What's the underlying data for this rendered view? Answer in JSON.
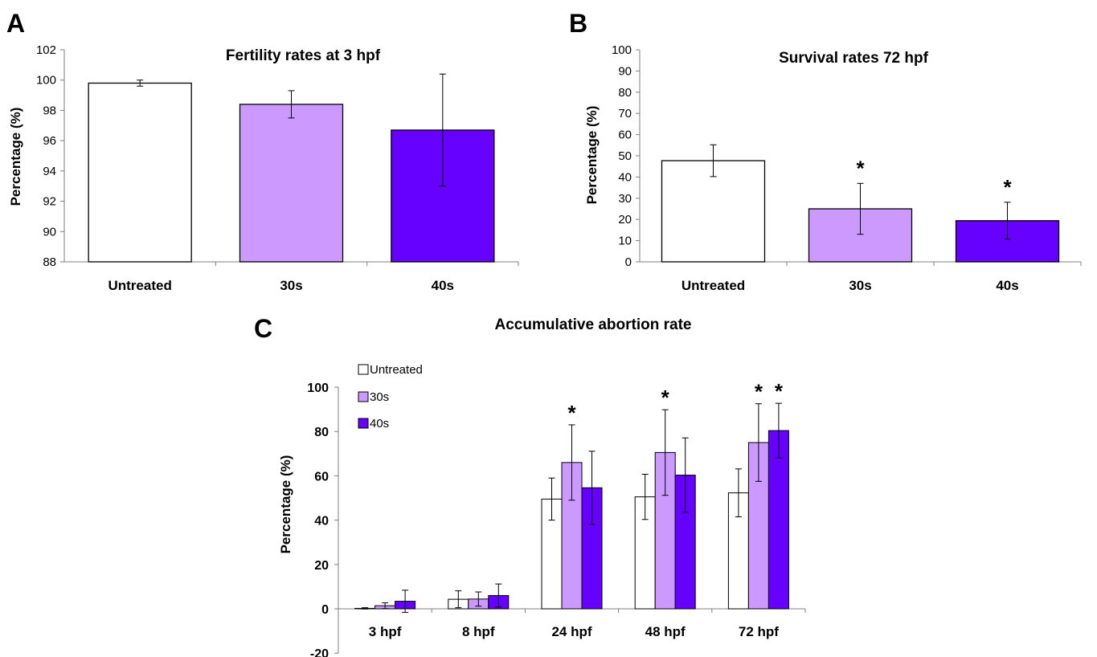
{
  "colors": {
    "untreated": "#ffffff",
    "s30": "#cc99ff",
    "s40": "#6600ff",
    "outline": "#000000"
  },
  "chart_data": [
    {
      "panel": "A",
      "type": "bar",
      "title": "Fertility rates at 3 hpf",
      "ylabel": "Percentage (%)",
      "xlabel": "",
      "categories": [
        "Untreated",
        "30s",
        "40s"
      ],
      "values": [
        99.8,
        98.4,
        96.7
      ],
      "errors": [
        0.2,
        0.9,
        3.7
      ],
      "ylim": [
        88,
        102
      ],
      "yticks": [
        "88",
        "90",
        "92",
        "94",
        "96",
        "98",
        "100",
        "102"
      ],
      "significant": [
        false,
        false,
        false
      ],
      "grid": false
    },
    {
      "panel": "B",
      "type": "bar",
      "title": "Survival rates 72 hpf",
      "ylabel": "Percentage (%)",
      "xlabel": "",
      "categories": [
        "Untreated",
        "30s",
        "40s"
      ],
      "values": [
        47.7,
        25,
        19.4
      ],
      "errors": [
        7.5,
        12,
        8.7
      ],
      "ylim": [
        0,
        100
      ],
      "yticks": [
        "0",
        "10",
        "20",
        "30",
        "40",
        "50",
        "60",
        "70",
        "80",
        "90",
        "100"
      ],
      "significant": [
        false,
        true,
        true
      ],
      "grid": false
    },
    {
      "panel": "C",
      "type": "bar",
      "title": "Accumulative abortion rate",
      "ylabel": "Percentage (%)",
      "xlabel": "",
      "categories": [
        "3 hpf",
        "8 hpf",
        "24 hpf",
        "48 hpf",
        "72 hpf"
      ],
      "ylim": [
        -20,
        100
      ],
      "yticks": [
        "-20",
        "0",
        "20",
        "40",
        "60",
        "80",
        "100"
      ],
      "legend_position": "top-left",
      "grid": false,
      "series": [
        {
          "name": "Untreated",
          "values": [
            0.2,
            4.3,
            49.5,
            50.5,
            52.3
          ],
          "errors": [
            0.3,
            3.8,
            9.5,
            10.2,
            10.8
          ],
          "significant": [
            false,
            false,
            false,
            false,
            false
          ]
        },
        {
          "name": "30s",
          "values": [
            1.4,
            4.4,
            66.0,
            70.5,
            75.0
          ],
          "errors": [
            1.3,
            3.2,
            17.0,
            19.3,
            17.5
          ],
          "significant": [
            false,
            false,
            true,
            true,
            true
          ]
        },
        {
          "name": "40s",
          "values": [
            3.4,
            6.0,
            54.6,
            60.3,
            80.4
          ],
          "errors": [
            5.0,
            5.2,
            16.5,
            16.8,
            12.3
          ],
          "significant": [
            false,
            false,
            false,
            false,
            true
          ]
        }
      ]
    }
  ],
  "marks": {
    "significance": "*"
  }
}
